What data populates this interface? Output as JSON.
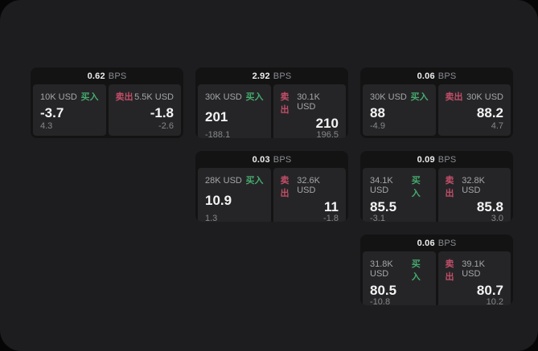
{
  "theme": {
    "outer_bg": "#060606",
    "panel_bg": "#1d1d1f",
    "card_bg": "#131314",
    "subpanel_bg": "#252527",
    "buy_color": "#46aa6e",
    "sell_color": "#c24e68"
  },
  "labels": {
    "bps": "BPS",
    "buy": "买入",
    "sell": "卖出"
  },
  "cards": [
    {
      "bps": "0.62",
      "col": 1,
      "row": 1,
      "buy": {
        "amount": "10K USD",
        "value": "-3.7",
        "delta": "4.3"
      },
      "sell": {
        "amount": "5.5K USD",
        "value": "-1.8",
        "delta": "-2.6"
      }
    },
    {
      "bps": "2.92",
      "col": 2,
      "row": 1,
      "buy": {
        "amount": "30K USD",
        "value": "201",
        "delta": "-188.1"
      },
      "sell": {
        "amount": "30.1K USD",
        "value": "210",
        "delta": "196.5"
      }
    },
    {
      "bps": "0.06",
      "col": 3,
      "row": 1,
      "buy": {
        "amount": "30K USD",
        "value": "88",
        "delta": "-4.9"
      },
      "sell": {
        "amount": "30K USD",
        "value": "88.2",
        "delta": "4.7"
      }
    },
    {
      "bps": "0.03",
      "col": 2,
      "row": 2,
      "buy": {
        "amount": "28K USD",
        "value": "10.9",
        "delta": "1.3"
      },
      "sell": {
        "amount": "32.6K USD",
        "value": "11",
        "delta": "-1.8"
      }
    },
    {
      "bps": "0.09",
      "col": 3,
      "row": 2,
      "buy": {
        "amount": "34.1K USD",
        "value": "85.5",
        "delta": "-3.1"
      },
      "sell": {
        "amount": "32.8K USD",
        "value": "85.8",
        "delta": "3.0"
      }
    },
    {
      "bps": "0.06",
      "col": 3,
      "row": 3,
      "buy": {
        "amount": "31.8K USD",
        "value": "80.5",
        "delta": "-10.8"
      },
      "sell": {
        "amount": "39.1K USD",
        "value": "80.7",
        "delta": "10.2"
      }
    }
  ]
}
